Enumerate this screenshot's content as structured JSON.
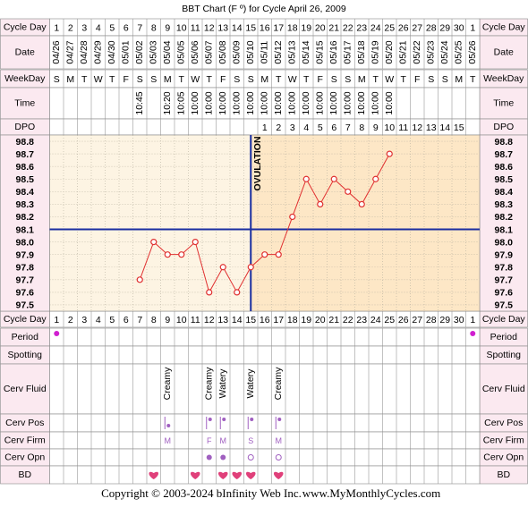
{
  "title": "BBT Chart (F º) for Cycle April 26, 2009",
  "row_labels": {
    "top": [
      "Cycle Day",
      "Date",
      "WeekDay",
      "Time",
      "DPO"
    ],
    "bottom": [
      "Cycle Day",
      "Period",
      "Spotting",
      "Cerv Fluid",
      "Cerv Pos",
      "Cerv Firm",
      "Cerv Opn",
      "BD"
    ]
  },
  "chart_data": {
    "type": "line",
    "categories": [
      "1",
      "2",
      "3",
      "4",
      "5",
      "6",
      "7",
      "8",
      "9",
      "10",
      "11",
      "12",
      "13",
      "14",
      "15",
      "16",
      "17",
      "18",
      "19",
      "20",
      "21",
      "22",
      "23",
      "24",
      "25",
      "26",
      "27",
      "28",
      "29",
      "30",
      "1"
    ],
    "dates": [
      "04/26",
      "04/27",
      "04/28",
      "04/29",
      "04/30",
      "05/01",
      "05/02",
      "05/03",
      "05/04",
      "05/05",
      "05/06",
      "05/07",
      "05/08",
      "05/09",
      "05/10",
      "05/11",
      "05/12",
      "05/13",
      "05/14",
      "05/15",
      "05/16",
      "05/17",
      "05/18",
      "05/19",
      "05/20",
      "05/21",
      "05/22",
      "05/23",
      "05/24",
      "05/25",
      "05/26"
    ],
    "weekdays": [
      "S",
      "M",
      "T",
      "W",
      "T",
      "F",
      "S",
      "S",
      "M",
      "T",
      "W",
      "T",
      "F",
      "S",
      "S",
      "M",
      "T",
      "W",
      "T",
      "F",
      "S",
      "S",
      "M",
      "T",
      "W",
      "T",
      "F",
      "S",
      "S",
      "M",
      "T"
    ],
    "times": [
      null,
      null,
      null,
      null,
      null,
      null,
      "10:45",
      null,
      "10:20",
      "10:05",
      "10:00",
      "10:00",
      "10:00",
      "10:00",
      "10:00",
      "10:00",
      "10:00",
      "10:00",
      "10:00",
      "10:00",
      "10:00",
      "10:00",
      "10:00",
      "10:00",
      "10:00",
      null,
      null,
      null,
      null,
      null,
      null
    ],
    "dpo": [
      null,
      null,
      null,
      null,
      null,
      null,
      null,
      null,
      null,
      null,
      null,
      null,
      null,
      null,
      null,
      1,
      2,
      3,
      4,
      5,
      6,
      7,
      8,
      9,
      10,
      11,
      12,
      13,
      14,
      15,
      null
    ],
    "series": [
      {
        "color": "#e03030",
        "values": [
          null,
          null,
          null,
          null,
          null,
          null,
          97.7,
          98.0,
          97.9,
          97.9,
          98.0,
          97.6,
          97.8,
          97.6,
          97.8,
          97.9,
          97.9,
          98.2,
          98.5,
          98.3,
          98.5,
          98.4,
          98.3,
          98.5,
          98.7,
          null,
          null,
          null,
          null,
          null,
          null
        ]
      }
    ],
    "ylim": [
      97.45,
      98.85
    ],
    "yticks": [
      98.8,
      98.7,
      98.6,
      98.5,
      98.4,
      98.3,
      98.2,
      98.1,
      {
        "value": 98.0,
        "label": "98.0"
      },
      97.9,
      97.8,
      97.7,
      97.6,
      97.5
    ],
    "grid": true,
    "coverline": 98.1,
    "coverline_color": "#1a2ea0",
    "ovulation_day": 15,
    "ovulation_label": "OVULATION"
  },
  "cervical": {
    "fluid": [
      {
        "day": 9,
        "label": "Creamy"
      },
      {
        "day": 12,
        "label": "Creamy"
      },
      {
        "day": 13,
        "label": "Watery"
      },
      {
        "day": 15,
        "label": "Watery"
      },
      {
        "day": 17,
        "label": "Creamy"
      }
    ],
    "position_days": [
      9,
      12,
      13,
      15,
      17
    ],
    "firmness": [
      {
        "day": 9,
        "label": "M"
      },
      {
        "day": 12,
        "label": "F"
      },
      {
        "day": 13,
        "label": "M"
      },
      {
        "day": 15,
        "label": "S"
      },
      {
        "day": 17,
        "label": "M"
      }
    ],
    "opening_filled": [
      12,
      13
    ],
    "opening_open": [
      15,
      17
    ]
  },
  "period_days": [
    1,
    31
  ],
  "bd_days": [
    8,
    11,
    13,
    14,
    15,
    17
  ],
  "footer": {
    "copyright": "Copyright © 2003-2024 bInfinity Web Inc.",
    "site": "www.MyMonthlyCycles.com"
  }
}
